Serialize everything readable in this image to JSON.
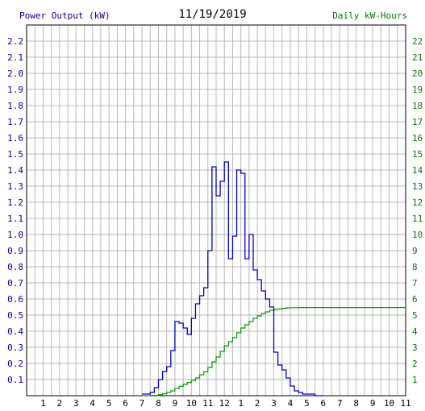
{
  "chart_data": {
    "type": "line",
    "title": "11/19/2019",
    "ylabel": "Power Output (kW)",
    "y2label": "Daily kW-Hours",
    "x_tick_labels": [
      "1",
      "2",
      "3",
      "4",
      "5",
      "6",
      "7",
      "8",
      "9",
      "10",
      "11",
      "12",
      "1",
      "2",
      "3",
      "4",
      "5",
      "6",
      "7",
      "8",
      "9",
      "10",
      "11"
    ],
    "y_tick_labels": [
      "0.1",
      "0.2",
      "0.3",
      "0.4",
      "0.5",
      "0.6",
      "0.7",
      "0.8",
      "0.9",
      "1.0",
      "1.1",
      "1.2",
      "1.3",
      "1.4",
      "1.5",
      "1.6",
      "1.7",
      "1.8",
      "1.9",
      "2.0",
      "2.1",
      "2.2"
    ],
    "y2_tick_labels": [
      "1",
      "2",
      "3",
      "4",
      "5",
      "6",
      "7",
      "8",
      "9",
      "10",
      "11",
      "12",
      "13",
      "14",
      "15",
      "16",
      "17",
      "18",
      "19",
      "20",
      "21",
      "22"
    ],
    "ylim": [
      0,
      2.3
    ],
    "y2lim": [
      0,
      23
    ],
    "xlim": [
      0,
      23
    ],
    "grid": true,
    "colors": {
      "power": "#0000cc",
      "energy": "#009900",
      "grid": "#b8b8b8",
      "left_axis_text": "#000099",
      "right_axis_text": "#007700"
    },
    "series": [
      {
        "name": "Power Output (kW)",
        "step": true,
        "x": [
          7.0,
          7.5,
          7.75,
          8.0,
          8.25,
          8.5,
          8.75,
          9.0,
          9.25,
          9.5,
          9.75,
          10.0,
          10.25,
          10.5,
          10.75,
          11.0,
          11.25,
          11.5,
          11.75,
          12.0,
          12.25,
          12.5,
          12.75,
          13.0,
          13.25,
          13.5,
          13.75,
          14.0,
          14.25,
          14.5,
          14.75,
          15.0,
          15.25,
          15.5,
          15.75,
          16.0,
          16.25,
          16.5,
          16.75,
          17.0,
          17.5,
          18.0
        ],
        "values": [
          0.01,
          0.02,
          0.05,
          0.1,
          0.15,
          0.18,
          0.28,
          0.46,
          0.45,
          0.42,
          0.38,
          0.48,
          0.57,
          0.62,
          0.67,
          0.9,
          1.42,
          1.24,
          1.33,
          1.45,
          0.85,
          0.99,
          1.4,
          1.38,
          0.85,
          1.0,
          0.78,
          0.72,
          0.65,
          0.6,
          0.55,
          0.27,
          0.19,
          0.16,
          0.11,
          0.06,
          0.03,
          0.02,
          0.01,
          0.01,
          0.0,
          0.0
        ]
      },
      {
        "name": "Daily kW-Hours",
        "step": true,
        "x": [
          7.0,
          7.5,
          8.0,
          8.25,
          8.5,
          8.75,
          9.0,
          9.25,
          9.5,
          9.75,
          10.0,
          10.25,
          10.5,
          10.75,
          11.0,
          11.25,
          11.5,
          11.75,
          12.0,
          12.25,
          12.5,
          12.75,
          13.0,
          13.25,
          13.5,
          13.75,
          14.0,
          14.25,
          14.5,
          14.75,
          15.0,
          15.25,
          15.5,
          15.75,
          16.0,
          16.5,
          17.0,
          23.0
        ],
        "values": [
          0.0,
          0.02,
          0.07,
          0.12,
          0.2,
          0.3,
          0.45,
          0.58,
          0.7,
          0.82,
          0.95,
          1.1,
          1.3,
          1.48,
          1.75,
          2.1,
          2.4,
          2.75,
          3.1,
          3.35,
          3.6,
          3.9,
          4.2,
          4.4,
          4.6,
          4.8,
          4.95,
          5.1,
          5.2,
          5.3,
          5.35,
          5.38,
          5.42,
          5.45,
          5.46,
          5.47,
          5.47,
          5.47
        ]
      }
    ]
  }
}
